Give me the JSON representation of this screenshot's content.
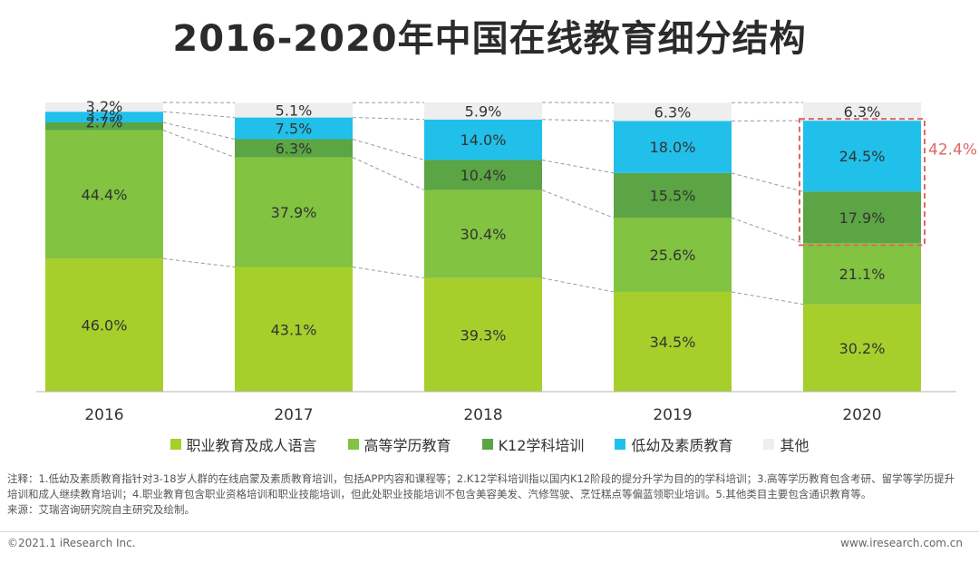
{
  "title": "2016-2020年中国在线教育细分结构",
  "chart_data": {
    "type": "bar",
    "stacked": true,
    "categories": [
      "2016",
      "2017",
      "2018",
      "2019",
      "2020"
    ],
    "series": [
      {
        "name": "职业教育及成人语言",
        "color": "#a6cf2c",
        "values": [
          46.0,
          43.1,
          39.3,
          34.5,
          30.2
        ]
      },
      {
        "name": "高等学历教育",
        "color": "#82c341",
        "values": [
          44.4,
          37.9,
          30.4,
          25.6,
          21.1
        ]
      },
      {
        "name": "K12学科培训",
        "color": "#5ba544",
        "values": [
          2.7,
          6.3,
          10.4,
          15.5,
          17.9
        ]
      },
      {
        "name": "低幼及素质教育",
        "color": "#20c0ea",
        "values": [
          3.7,
          7.5,
          14.0,
          18.0,
          24.5
        ]
      },
      {
        "name": "其他",
        "color": "#eeeeee",
        "values": [
          3.2,
          5.1,
          5.9,
          6.3,
          6.3
        ]
      }
    ],
    "labels": [
      [
        "46.0%",
        "44.4%",
        "2.7%",
        "3.7%",
        "3.2%"
      ],
      [
        "43.1%",
        "37.9%",
        "6.3%",
        "7.5%",
        "5.1%"
      ],
      [
        "39.3%",
        "30.4%",
        "10.4%",
        "14.0%",
        "5.9%"
      ],
      [
        "34.5%",
        "25.6%",
        "15.5%",
        "18.0%",
        "6.3%"
      ],
      [
        "30.2%",
        "21.1%",
        "17.9%",
        "24.5%",
        "6.3%"
      ]
    ],
    "highlight": {
      "category": "2020",
      "label": "42.4%",
      "color": "#e06666"
    },
    "ylim": [
      0,
      100
    ],
    "legend_position": "bottom"
  },
  "note": "注释：1.低幼及素质教育指针对3-18岁人群的在线启蒙及素质教育培训，包括APP内容和课程等；2.K12学科培训指以国内K12阶段的提分升学为目的的学科培训；3.高等学历教育包含考研、留学等学历提升培训和成人继续教育培训；4.职业教育包含职业资格培训和职业技能培训，但此处职业技能培训不包含美容美发、汽修驾驶、烹饪糕点等偏蓝领职业培训。5.其他类目主要包含通识教育等。",
  "source": "来源：艾瑞咨询研究院自主研究及绘制。",
  "footer": {
    "copyright": "©2021.1 iResearch Inc.",
    "website": "www.iresearch.com.cn"
  }
}
